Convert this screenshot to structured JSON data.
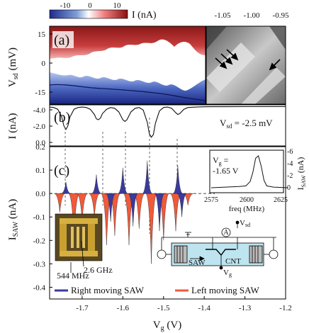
{
  "chart_data": [
    {
      "panel": "a",
      "type": "heatmap",
      "panel_label": "(a)",
      "colorbar": {
        "label": "I (nA)",
        "ticks": [
          "-10",
          "0",
          "10"
        ],
        "colors": [
          "#1e2a8c",
          "#ffffff",
          "#8a1010"
        ],
        "range": [
          -14,
          14
        ]
      },
      "ylabel": "V_sd (mV)",
      "ylabel_main": "V",
      "ylabel_sub": "sd",
      "ylabel_unit": " (mV)",
      "ylim": [
        -20,
        20
      ],
      "yticks": [
        "15",
        "0",
        "-15"
      ],
      "inset": {
        "type": "heatmap",
        "top_ticks": [
          "-1.05",
          "-1.00",
          "-0.95"
        ],
        "arrow_count": 4
      }
    },
    {
      "panel": "b",
      "type": "line",
      "panel_label": "(b)",
      "ylabel": "I (nA)",
      "ylim": [
        -4.5,
        0.2
      ],
      "yticks": [
        "-4.0",
        "-2.0",
        "0.0"
      ],
      "annotation": "V_sd = -2.5 mV",
      "annotation_main": "V",
      "annotation_sub": "sd",
      "annotation_rest": " = -2.5 mV",
      "x": [
        -1.78,
        -1.77,
        -1.76,
        -1.75,
        -1.745,
        -1.74,
        -1.735,
        -1.73,
        -1.72,
        -1.71,
        -1.7,
        -1.69,
        -1.68,
        -1.67,
        -1.665,
        -1.66,
        -1.655,
        -1.65,
        -1.64,
        -1.63,
        -1.62,
        -1.61,
        -1.6,
        -1.595,
        -1.59,
        -1.58,
        -1.57,
        -1.56,
        -1.55,
        -1.54,
        -1.535,
        -1.53,
        -1.525,
        -1.52,
        -1.51,
        -1.5,
        -1.49,
        -1.48,
        -1.47,
        -1.465,
        -1.46,
        -1.45,
        -1.44,
        -1.42,
        -1.4,
        -1.38,
        -1.35,
        -1.3,
        -1.25,
        -1.2
      ],
      "y": [
        -0.05,
        -0.1,
        -0.3,
        -1.2,
        -2.2,
        -2.6,
        -2.2,
        -1.2,
        -0.3,
        -0.1,
        -0.05,
        -0.1,
        -0.3,
        -0.9,
        -1.4,
        -1.5,
        -1.3,
        -0.8,
        -0.3,
        -0.1,
        -0.2,
        -0.6,
        -1.5,
        -1.7,
        -1.5,
        -0.6,
        -0.2,
        -0.1,
        -0.4,
        -1.8,
        -3.1,
        -3.5,
        -3.2,
        -1.9,
        -0.5,
        -0.1,
        -0.05,
        -0.2,
        -0.7,
        -0.9,
        -0.8,
        -0.3,
        -0.1,
        -0.05,
        -0.02,
        -0.01,
        -0.01,
        0,
        0,
        0
      ]
    },
    {
      "panel": "c",
      "type": "area",
      "panel_label": "(c)",
      "ylabel": "I_SAW (nA)",
      "ylabel_main": "I",
      "ylabel_sub": "SAW",
      "ylabel_unit": " (nA)",
      "ylim": [
        -0.45,
        0.2
      ],
      "yticks": [
        "0.2",
        "0.1",
        "0.0",
        "-0.1",
        "-0.2",
        "-0.3",
        "-0.4"
      ],
      "xlabel": "V_g (V)",
      "xlabel_main": "V",
      "xlabel_sub": "g",
      "xlabel_unit": " (V)",
      "xlim": [
        -1.78,
        -1.2
      ],
      "xticks": [
        "-1.7",
        "-1.6",
        "-1.5",
        "-1.4",
        "-1.3",
        "-1.2"
      ],
      "legend": {
        "right": "Right moving SAW",
        "left": "Left moving SAW"
      },
      "legend_colors": {
        "right": "#3a3a9e",
        "left": "#f05a3a"
      },
      "red_peaks": [
        {
          "x": -1.755,
          "y": -0.08
        },
        {
          "x": -1.72,
          "y": -0.2
        },
        {
          "x": -1.7,
          "y": -0.12
        },
        {
          "x": -1.67,
          "y": -0.1
        },
        {
          "x": -1.64,
          "y": -0.22
        },
        {
          "x": -1.62,
          "y": -0.18
        },
        {
          "x": -1.585,
          "y": -0.22
        },
        {
          "x": -1.56,
          "y": -0.15
        },
        {
          "x": -1.53,
          "y": -0.3
        },
        {
          "x": -1.5,
          "y": -0.2
        },
        {
          "x": -1.47,
          "y": -0.16
        },
        {
          "x": -1.44,
          "y": -0.05
        }
      ],
      "blue_peaks": [
        {
          "x": -1.74,
          "y": 0.05
        },
        {
          "x": -1.665,
          "y": 0.08
        },
        {
          "x": -1.6,
          "y": 0.11
        },
        {
          "x": -1.54,
          "y": 0.14
        },
        {
          "x": -1.465,
          "y": 0.12
        },
        {
          "x": -1.63,
          "y": -0.12
        },
        {
          "x": -1.575,
          "y": -0.14
        },
        {
          "x": -1.51,
          "y": -0.16
        },
        {
          "x": -1.455,
          "y": -0.1
        }
      ],
      "inset": {
        "type": "line",
        "annotation_line1": "V_g =",
        "annotation_main": "V",
        "annotation_sub": "g",
        "annotation_eq": " =",
        "annotation_line2": "-1.65 V",
        "xlabel": "freq (MHz)",
        "xticks": [
          "2575",
          "2600",
          "2625"
        ],
        "ylabel": "I_SAW (nA)",
        "ylabel_main": "I",
        "ylabel_sub": "SAW",
        "ylabel_unit": " (nA)",
        "yticks": [
          "-6",
          "-4",
          "-2",
          "0"
        ],
        "x": [
          2575,
          2585,
          2595,
          2600,
          2603,
          2605,
          2607,
          2609,
          2611,
          2613,
          2615,
          2620,
          2630
        ],
        "y": [
          0,
          -0.1,
          -0.2,
          -0.3,
          -1.0,
          -2.5,
          -4.8,
          -5.2,
          -3.5,
          -1.2,
          -0.3,
          -0.1,
          0
        ]
      },
      "photo_labels": {
        "low": "544 MHz",
        "high": "2.6 GHz"
      },
      "schematic": {
        "ammeter": "A",
        "vsd": "V_sd",
        "vsd_main": "V",
        "vsd_sub": "sd",
        "vg_main": "V",
        "vg_sub": "g",
        "vg": "V_g",
        "saw": "SAW",
        "cnt": "CNT"
      }
    }
  ]
}
